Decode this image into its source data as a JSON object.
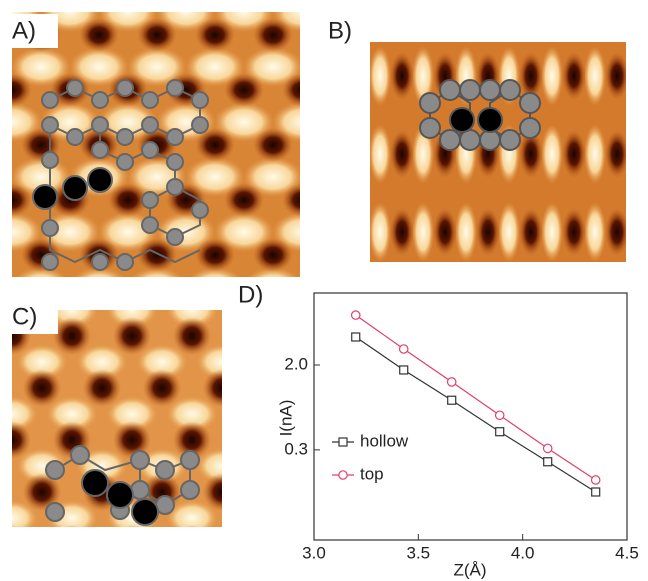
{
  "panels": [
    {
      "label": "A)"
    },
    {
      "label": "B)"
    },
    {
      "label": "C)"
    }
  ],
  "chart_data": {
    "type": "line",
    "label": "D)",
    "xlabel": "Z(Å)",
    "ylabel": "I(nA)",
    "ylog": true,
    "legend": "lower left",
    "xlim": [
      3.0,
      4.5
    ],
    "xticks": [
      {
        "value": 3,
        "label": "3.0"
      },
      3.5,
      {
        "value": 4,
        "label": "4.0"
      },
      4.5
    ],
    "ylim": [
      0.04,
      10
    ],
    "yticks": [
      {
        "value": 2,
        "label": "2.0"
      },
      0.3
    ],
    "series": [
      {
        "name": "hollow",
        "color": "#333333",
        "marker": "square",
        "x": [
          3.2,
          3.43,
          3.66,
          3.89,
          4.12,
          4.35
        ],
        "values": [
          3.74,
          1.79,
          0.91,
          0.45,
          0.23,
          0.117
        ]
      },
      {
        "name": "top",
        "color": "#e0406a",
        "marker": "circle",
        "x": [
          3.2,
          3.43,
          3.66,
          3.89,
          4.12,
          4.35
        ],
        "values": [
          6.1,
          2.86,
          1.37,
          0.65,
          0.31,
          0.153
        ]
      }
    ]
  }
}
